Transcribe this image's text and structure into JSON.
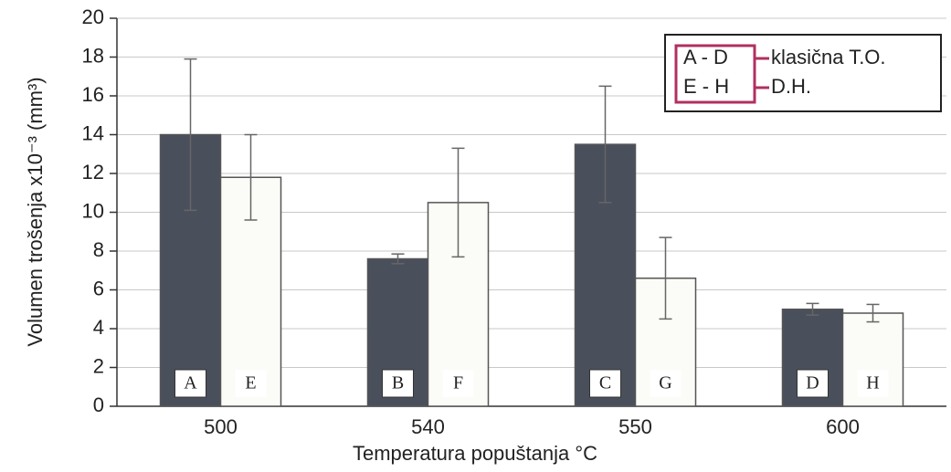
{
  "chart_data": {
    "type": "bar",
    "x_label": "Temperatura popuštanja °C",
    "y_label": "Volumen trošenja x10⁻³ (mm³)",
    "categories": [
      "500",
      "540",
      "550",
      "600"
    ],
    "series": [
      {
        "name": "klasična T.O.",
        "key": "A - D",
        "color": "#4a4f5c",
        "values": [
          14.0,
          7.6,
          13.5,
          5.0
        ],
        "errors": [
          3.9,
          0.25,
          3.0,
          0.3
        ],
        "letters": [
          "A",
          "B",
          "C",
          "D"
        ]
      },
      {
        "name": "D.H.",
        "key": "E - H",
        "color": "#fbfbf7",
        "values": [
          11.8,
          10.5,
          6.6,
          4.8
        ],
        "errors": [
          2.2,
          2.8,
          2.1,
          0.45
        ],
        "letters": [
          "E",
          "F",
          "G",
          "H"
        ]
      }
    ],
    "ylim": [
      0,
      20
    ],
    "yticks": [
      0,
      2,
      4,
      6,
      8,
      10,
      12,
      14,
      16,
      18,
      20
    ],
    "grid": true
  }
}
